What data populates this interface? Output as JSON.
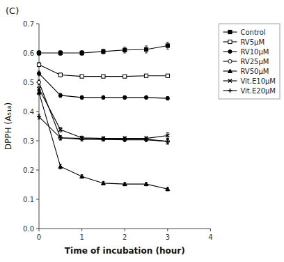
{
  "chart_data": {
    "type": "line",
    "title": "(C)",
    "x_label": "Time of incubation (hour)",
    "y_label": "DPPH (A₅₁₈)",
    "xlim": [
      0,
      4
    ],
    "ylim": [
      0.0,
      0.7
    ],
    "xticks": [
      0,
      1,
      2,
      3,
      4
    ],
    "yticks": [
      {
        "value": 0.0,
        "label": "0.0"
      },
      0.1,
      0.2,
      0.3,
      0.4,
      0.5,
      0.6,
      0.7
    ],
    "grid": false,
    "legend": "upper right",
    "x": [
      0,
      0.5,
      1.0,
      1.5,
      2.0,
      2.5,
      3.0
    ],
    "series": [
      {
        "name": "Control",
        "color": "black",
        "marker": "square-filled",
        "line_style": "solid",
        "values": [
          0.6,
          0.6,
          0.6,
          0.605,
          0.61,
          0.612,
          0.625
        ],
        "errors": [
          0.008,
          0.008,
          0.008,
          0.008,
          0.01,
          0.012,
          0.012
        ]
      },
      {
        "name": "RV5μM",
        "color": "black",
        "marker": "square-open",
        "line_style": "solid",
        "values": [
          0.56,
          0.525,
          0.52,
          0.52,
          0.52,
          0.522,
          0.522
        ],
        "errors": [
          0.007,
          0.006,
          0.005,
          0.005,
          0.005,
          0.005,
          0.005
        ]
      },
      {
        "name": "RV10μM",
        "color": "black",
        "marker": "circle-filled",
        "line_style": "solid",
        "values": [
          0.53,
          0.455,
          0.448,
          0.448,
          0.448,
          0.448,
          0.445
        ],
        "errors": [
          0.008,
          0.007,
          0.006,
          0.006,
          0.006,
          0.006,
          0.006
        ]
      },
      {
        "name": "RV25μM",
        "color": "black",
        "marker": "circle-open",
        "line_style": "solid",
        "values": [
          0.5,
          0.31,
          0.308,
          0.305,
          0.305,
          0.305,
          0.298
        ],
        "errors": [
          0.008,
          0.008,
          0.006,
          0.006,
          0.006,
          0.006,
          0.008
        ]
      },
      {
        "name": "RV50μM",
        "color": "black",
        "marker": "triangle-filled",
        "line_style": "solid",
        "values": [
          0.465,
          0.212,
          0.178,
          0.155,
          0.152,
          0.152,
          0.135
        ],
        "errors": [
          0.008,
          0.008,
          0.006,
          0.006,
          0.006,
          0.006,
          0.006
        ]
      },
      {
        "name": "Vit.E10μM",
        "color": "black",
        "marker": "x",
        "line_style": "solid",
        "values": [
          0.478,
          0.338,
          0.31,
          0.308,
          0.308,
          0.308,
          0.318
        ],
        "errors": [
          0.008,
          0.008,
          0.006,
          0.006,
          0.006,
          0.006,
          0.01
        ]
      },
      {
        "name": "Vit.E20μM",
        "color": "black",
        "marker": "plus",
        "line_style": "solid",
        "values": [
          0.382,
          0.31,
          0.305,
          0.305,
          0.303,
          0.303,
          0.298
        ],
        "errors": [
          0.008,
          0.006,
          0.006,
          0.006,
          0.006,
          0.006,
          0.01
        ]
      }
    ]
  }
}
